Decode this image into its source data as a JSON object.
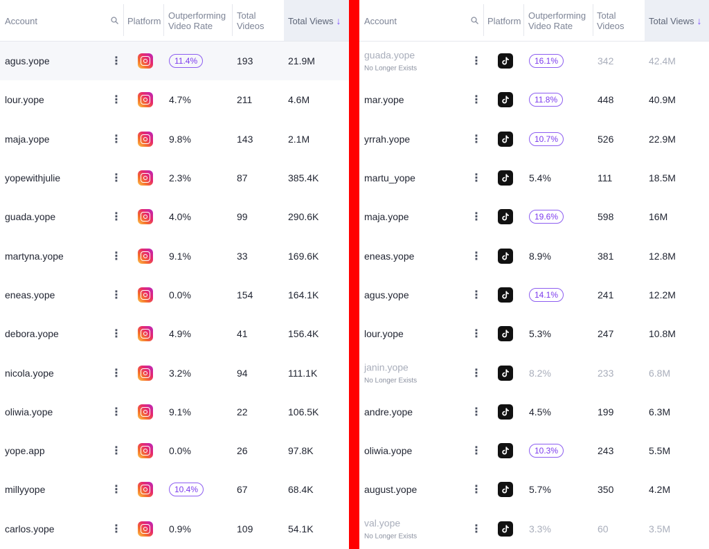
{
  "left_table": {
    "headers": {
      "account": "Account",
      "platform": "Platform",
      "outperforming": [
        "Outperforming",
        "Video Rate"
      ],
      "total_videos": [
        "Total",
        "Videos"
      ],
      "total_views": "Total Views"
    },
    "rows": [
      {
        "account": "agus.yope",
        "rate": "11.4%",
        "badge": true,
        "videos": "193",
        "views": "21.9M"
      },
      {
        "account": "lour.yope",
        "rate": "4.7%",
        "badge": false,
        "videos": "211",
        "views": "4.6M"
      },
      {
        "account": "maja.yope",
        "rate": "9.8%",
        "badge": false,
        "videos": "143",
        "views": "2.1M"
      },
      {
        "account": "yopewithjulie",
        "rate": "2.3%",
        "badge": false,
        "videos": "87",
        "views": "385.4K"
      },
      {
        "account": "guada.yope",
        "rate": "4.0%",
        "badge": false,
        "videos": "99",
        "views": "290.6K"
      },
      {
        "account": "martyna.yope",
        "rate": "9.1%",
        "badge": false,
        "videos": "33",
        "views": "169.6K"
      },
      {
        "account": "eneas.yope",
        "rate": "0.0%",
        "badge": false,
        "videos": "154",
        "views": "164.1K"
      },
      {
        "account": "debora.yope",
        "rate": "4.9%",
        "badge": false,
        "videos": "41",
        "views": "156.4K"
      },
      {
        "account": "nicola.yope",
        "rate": "3.2%",
        "badge": false,
        "videos": "94",
        "views": "111.1K"
      },
      {
        "account": "oliwia.yope",
        "rate": "9.1%",
        "badge": false,
        "videos": "22",
        "views": "106.5K"
      },
      {
        "account": "yope.app",
        "rate": "0.0%",
        "badge": false,
        "videos": "26",
        "views": "97.8K"
      },
      {
        "account": "millyyope",
        "rate": "10.4%",
        "badge": true,
        "videos": "67",
        "views": "68.4K"
      },
      {
        "account": "carlos.yope",
        "rate": "0.9%",
        "badge": false,
        "videos": "109",
        "views": "54.1K"
      }
    ]
  },
  "right_table": {
    "headers": {
      "account": "Account",
      "platform": "Platform",
      "outperforming": [
        "Outperforming",
        "Video Rate"
      ],
      "total_videos": [
        "Total",
        "Videos"
      ],
      "total_views": "Total Views"
    },
    "rows": [
      {
        "account": "guada.yope",
        "note": "No Longer Exists",
        "gone": true,
        "rate": "16.1%",
        "badge": true,
        "videos": "342",
        "views": "42.4M"
      },
      {
        "account": "mar.yope",
        "rate": "11.8%",
        "badge": true,
        "videos": "448",
        "views": "40.9M"
      },
      {
        "account": "yrrah.yope",
        "rate": "10.7%",
        "badge": true,
        "videos": "526",
        "views": "22.9M"
      },
      {
        "account": "martu_yope",
        "rate": "5.4%",
        "badge": false,
        "videos": "111",
        "views": "18.5M"
      },
      {
        "account": "maja.yope",
        "rate": "19.6%",
        "badge": true,
        "videos": "598",
        "views": "16M"
      },
      {
        "account": "eneas.yope",
        "rate": "8.9%",
        "badge": false,
        "videos": "381",
        "views": "12.8M"
      },
      {
        "account": "agus.yope",
        "rate": "14.1%",
        "badge": true,
        "videos": "241",
        "views": "12.2M"
      },
      {
        "account": "lour.yope",
        "rate": "5.3%",
        "badge": false,
        "videos": "247",
        "views": "10.8M"
      },
      {
        "account": "janin.yope",
        "note": "No Longer Exists",
        "gone": true,
        "rate": "8.2%",
        "badge": false,
        "videos": "233",
        "views": "6.8M"
      },
      {
        "account": "andre.yope",
        "rate": "4.5%",
        "badge": false,
        "videos": "199",
        "views": "6.3M"
      },
      {
        "account": "oliwia.yope",
        "rate": "10.3%",
        "badge": true,
        "videos": "243",
        "views": "5.5M"
      },
      {
        "account": "august.yope",
        "rate": "5.7%",
        "badge": false,
        "videos": "350",
        "views": "4.2M"
      },
      {
        "account": "val.yope",
        "note": "No Longer Exists",
        "gone": true,
        "rate": "3.3%",
        "badge": false,
        "videos": "60",
        "views": "3.5M"
      }
    ]
  },
  "icons": {
    "left_platform": "instagram-icon",
    "right_platform": "tiktok-icon",
    "search": "search-icon",
    "menu": "more-vertical-icon",
    "sort": "arrow-down-icon"
  },
  "colors": {
    "badge": "#7c3aed",
    "divider": "#ff0000",
    "sort_header_bg": "#eceff5",
    "muted_text": "#a9aebb"
  }
}
